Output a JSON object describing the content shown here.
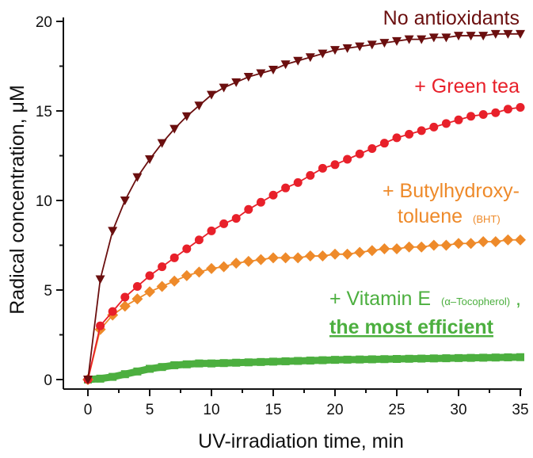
{
  "chart_data": {
    "type": "line",
    "xlabel": "UV-irradiation time, min",
    "ylabel": "Radical concentration, μM",
    "xlim": [
      0,
      35
    ],
    "ylim": [
      0,
      20
    ],
    "xticks": [
      0,
      5,
      10,
      15,
      20,
      25,
      30,
      35
    ],
    "yticks": [
      0,
      5,
      10,
      15,
      20
    ],
    "grid": false,
    "legend": "inline annotations near curves",
    "x": [
      0,
      1,
      2,
      3,
      4,
      5,
      6,
      7,
      8,
      9,
      10,
      11,
      12,
      13,
      14,
      15,
      16,
      17,
      18,
      19,
      20,
      21,
      22,
      23,
      24,
      25,
      26,
      27,
      28,
      29,
      30,
      31,
      32,
      33,
      34,
      35
    ],
    "series": [
      {
        "name": "No antioxidants",
        "color": "#6b0f0f",
        "marker": "triangle-down",
        "values": [
          0,
          5.6,
          8.3,
          10.0,
          11.3,
          12.3,
          13.2,
          14.0,
          14.7,
          15.3,
          15.9,
          16.3,
          16.6,
          16.9,
          17.1,
          17.3,
          17.6,
          17.8,
          18.0,
          18.2,
          18.4,
          18.5,
          18.6,
          18.7,
          18.8,
          18.9,
          19.0,
          19.0,
          19.1,
          19.1,
          19.2,
          19.2,
          19.2,
          19.3,
          19.3,
          19.3
        ]
      },
      {
        "name": "+ Green tea",
        "color": "#e8202a",
        "marker": "circle",
        "values": [
          0,
          3.0,
          3.8,
          4.6,
          5.2,
          5.8,
          6.3,
          6.8,
          7.3,
          7.8,
          8.3,
          8.7,
          9.0,
          9.5,
          9.9,
          10.3,
          10.7,
          11.0,
          11.4,
          11.8,
          12.0,
          12.3,
          12.6,
          12.9,
          13.2,
          13.5,
          13.7,
          13.9,
          14.1,
          14.3,
          14.5,
          14.7,
          14.8,
          14.9,
          15.1,
          15.2
        ]
      },
      {
        "name": "+ Butylhydroxy-toluene (BHT)",
        "color": "#ee8a2a",
        "marker": "diamond",
        "values": [
          0,
          2.8,
          3.6,
          4.1,
          4.5,
          4.9,
          5.2,
          5.5,
          5.8,
          6.0,
          6.2,
          6.3,
          6.5,
          6.6,
          6.7,
          6.8,
          6.8,
          6.8,
          6.9,
          6.9,
          7.0,
          7.0,
          7.1,
          7.2,
          7.3,
          7.3,
          7.4,
          7.4,
          7.5,
          7.5,
          7.6,
          7.6,
          7.7,
          7.7,
          7.8,
          7.8
        ]
      },
      {
        "name": "+ Vitamin E (α–Tocopherol)",
        "color": "#4caf3f",
        "marker": "square",
        "values": [
          0,
          0.05,
          0.15,
          0.3,
          0.45,
          0.6,
          0.7,
          0.8,
          0.85,
          0.9,
          0.9,
          0.92,
          0.94,
          0.96,
          0.98,
          1.0,
          1.02,
          1.04,
          1.06,
          1.08,
          1.1,
          1.11,
          1.12,
          1.13,
          1.14,
          1.15,
          1.16,
          1.17,
          1.18,
          1.19,
          1.2,
          1.21,
          1.22,
          1.23,
          1.24,
          1.25
        ]
      }
    ],
    "annotations": {
      "none": "No antioxidants",
      "tea": "+ Green tea",
      "bht_line1": "+ Butylhydroxy-",
      "bht_line2": "toluene",
      "bht_abbr": "(BHT)",
      "vit_main": "+ Vitamin E",
      "vit_sub": "(α–Tocopherol)",
      "vit_comma": ",",
      "vit_note": "the most efficient"
    }
  }
}
